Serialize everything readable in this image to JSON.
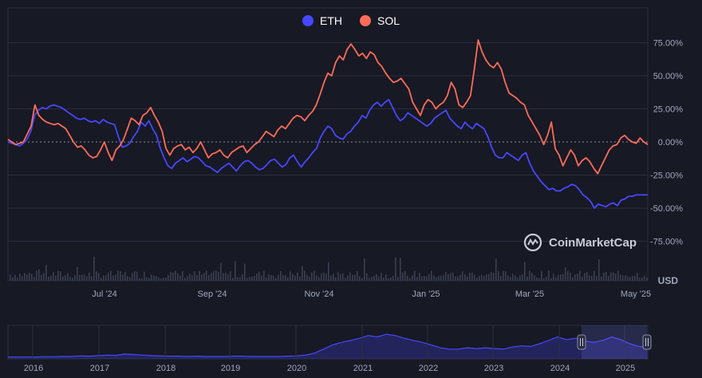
{
  "legend": {
    "eth_label": "ETH",
    "sol_label": "SOL"
  },
  "watermark": "CoinMarketCap",
  "currency_label": "USD",
  "colors": {
    "background": "#171924",
    "eth": "#4747ff",
    "sol": "#fe6c59",
    "grid": "#2a2f3e",
    "axis_text": "#a1a7bb"
  },
  "navigator": {
    "years": [
      "2016",
      "2017",
      "2018",
      "2019",
      "2020",
      "2021",
      "2022",
      "2023",
      "2024",
      "2025"
    ],
    "series": [
      0.01,
      0.01,
      0.01,
      0.01,
      0.02,
      0.02,
      0.03,
      0.03,
      0.05,
      0.04,
      0.06,
      0.08,
      0.07,
      0.12,
      0.1,
      0.08,
      0.06,
      0.05,
      0.04,
      0.04,
      0.03,
      0.04,
      0.03,
      0.03,
      0.03,
      0.04,
      0.04,
      0.03,
      0.03,
      0.03,
      0.03,
      0.04,
      0.05,
      0.08,
      0.15,
      0.3,
      0.45,
      0.55,
      0.62,
      0.7,
      0.8,
      0.75,
      0.85,
      0.8,
      0.7,
      0.62,
      0.55,
      0.45,
      0.35,
      0.3,
      0.3,
      0.35,
      0.32,
      0.35,
      0.32,
      0.3,
      0.38,
      0.42,
      0.4,
      0.5,
      0.62,
      0.75,
      0.65,
      0.7,
      0.6,
      0.55,
      0.62,
      0.75,
      0.65,
      0.5,
      0.4,
      0.36
    ]
  },
  "chart_data": {
    "type": "line",
    "title": "",
    "xlabel": "",
    "ylabel": "",
    "unit": "%",
    "ylim": [
      -85,
      95
    ],
    "x_tick_labels": [
      "Jul '24",
      "Sep '24",
      "Nov '24",
      "Jan '25",
      "Mar '25",
      "May '25"
    ],
    "y_tick_labels": [
      "75.00%",
      "50.00%",
      "25.00%",
      "0.00%",
      "-25.00%",
      "-50.00%",
      "-75.00%"
    ],
    "y_ticks": [
      75,
      50,
      25,
      0,
      -25,
      -50,
      -75
    ],
    "legend_position": "top-center",
    "series": [
      {
        "name": "ETH",
        "color": "#4747ff",
        "values": [
          0,
          -1,
          -2,
          -3,
          -1,
          2,
          8,
          20,
          24,
          26,
          25,
          27,
          28,
          27,
          26,
          24,
          22,
          20,
          18,
          17,
          18,
          16,
          15,
          16,
          14,
          17,
          15,
          14,
          13,
          4,
          -4,
          -3,
          -1,
          4,
          8,
          15,
          12,
          16,
          10,
          5,
          -5,
          -12,
          -18,
          -20,
          -16,
          -14,
          -12,
          -15,
          -13,
          -11,
          -12,
          -15,
          -18,
          -19,
          -21,
          -23,
          -20,
          -18,
          -16,
          -19,
          -22,
          -18,
          -15,
          -14,
          -16,
          -19,
          -21,
          -20,
          -17,
          -14,
          -13,
          -16,
          -19,
          -17,
          -12,
          -10,
          -15,
          -19,
          -15,
          -12,
          -8,
          -5,
          3,
          8,
          12,
          10,
          5,
          3,
          2,
          6,
          8,
          12,
          15,
          20,
          18,
          24,
          28,
          30,
          27,
          30,
          32,
          26,
          20,
          16,
          18,
          22,
          20,
          18,
          16,
          14,
          12,
          14,
          18,
          20,
          22,
          24,
          18,
          15,
          12,
          10,
          15,
          12,
          10,
          14,
          12,
          10,
          4,
          -4,
          -10,
          -12,
          -12,
          -8,
          -10,
          -12,
          -14,
          -10,
          -8,
          -16,
          -22,
          -26,
          -30,
          -33,
          -36,
          -35,
          -37,
          -37,
          -35,
          -34,
          -32,
          -33,
          -36,
          -40,
          -42,
          -45,
          -50,
          -47,
          -48,
          -49,
          -47,
          -46,
          -48,
          -44,
          -43,
          -41,
          -41,
          -40,
          -40,
          -40,
          -40
        ]
      },
      {
        "name": "SOL",
        "color": "#fe6c59",
        "values": [
          2,
          0,
          -2,
          -1,
          0,
          6,
          12,
          28,
          20,
          17,
          15,
          14,
          13,
          14,
          12,
          10,
          5,
          0,
          -4,
          -3,
          -6,
          -10,
          -12,
          -11,
          -6,
          0,
          -8,
          -14,
          -6,
          -3,
          2,
          10,
          18,
          16,
          13,
          20,
          22,
          26,
          20,
          15,
          8,
          -5,
          -10,
          -5,
          -3,
          -2,
          -6,
          -4,
          -8,
          -5,
          0,
          -6,
          -12,
          -9,
          -8,
          -6,
          -10,
          -12,
          -8,
          -6,
          -4,
          -3,
          -8,
          -5,
          -2,
          0,
          4,
          8,
          6,
          4,
          9,
          12,
          10,
          14,
          18,
          20,
          19,
          16,
          20,
          23,
          28,
          36,
          45,
          52,
          50,
          60,
          65,
          62,
          70,
          74,
          70,
          65,
          67,
          63,
          68,
          66,
          60,
          57,
          52,
          48,
          45,
          46,
          48,
          44,
          40,
          30,
          25,
          20,
          28,
          32,
          30,
          25,
          28,
          30,
          35,
          45,
          40,
          28,
          26,
          30,
          35,
          55,
          77,
          68,
          62,
          58,
          56,
          60,
          55,
          45,
          37,
          35,
          33,
          30,
          28,
          20,
          15,
          10,
          5,
          -2,
          5,
          15,
          -5,
          -10,
          -18,
          -12,
          -6,
          -10,
          -18,
          -14,
          -12,
          -15,
          -20,
          -24,
          -18,
          -12,
          -6,
          -3,
          -2,
          3,
          5,
          2,
          0,
          -1,
          3,
          0,
          -2
        ]
      }
    ]
  }
}
